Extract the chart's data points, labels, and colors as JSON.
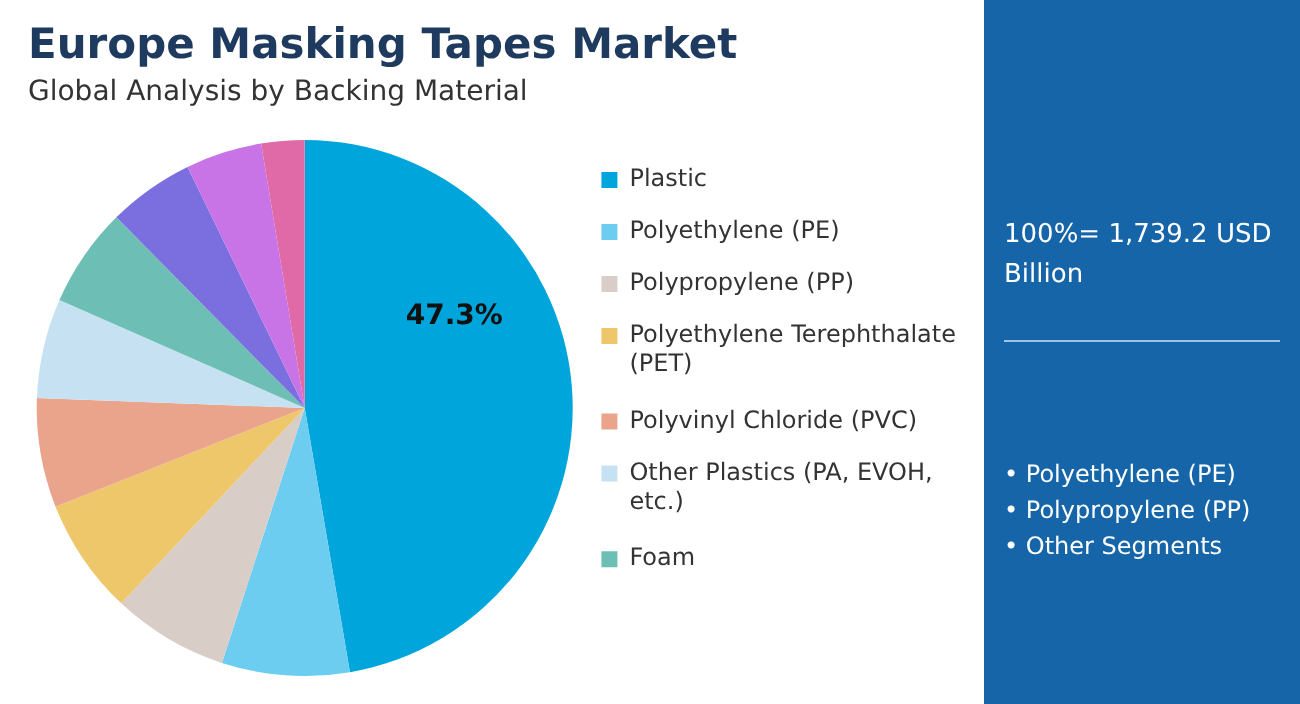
{
  "chart_data": {
    "type": "pie",
    "title": "Europe Masking Tapes Market",
    "subtitle": "Global Analysis by Backing Material",
    "categories": [
      "Plastic",
      "Polyethylene (PE)",
      "Polypropylene (PP)",
      "Polyethylene Terephthalate (PET)",
      "Polyvinyl Chloride (PVC)",
      "Other Plastics (PA, EVOH, etc.)",
      "Foam",
      null,
      null,
      null
    ],
    "values": [
      47.3,
      7.7,
      7.0,
      7.0,
      6.6,
      6.0,
      6.0,
      5.2,
      4.6,
      2.6
    ],
    "colors": [
      "#00a6db",
      "#6dcdf0",
      "#d9cdc8",
      "#eec76a",
      "#eba48c",
      "#c6e2f2",
      "#6dbfb5",
      "#7b6fe0",
      "#c874e6",
      "#e06aa8"
    ],
    "value_labels": [
      "47.3%",
      null,
      null,
      null,
      null,
      null,
      null,
      null,
      null,
      null
    ],
    "legend": "right",
    "annotations": [
      "100%= 1,739.2 USD Billion",
      "• Polyethylene (PE)",
      "• Polypropylene (PP)",
      "• Other Segments"
    ]
  }
}
